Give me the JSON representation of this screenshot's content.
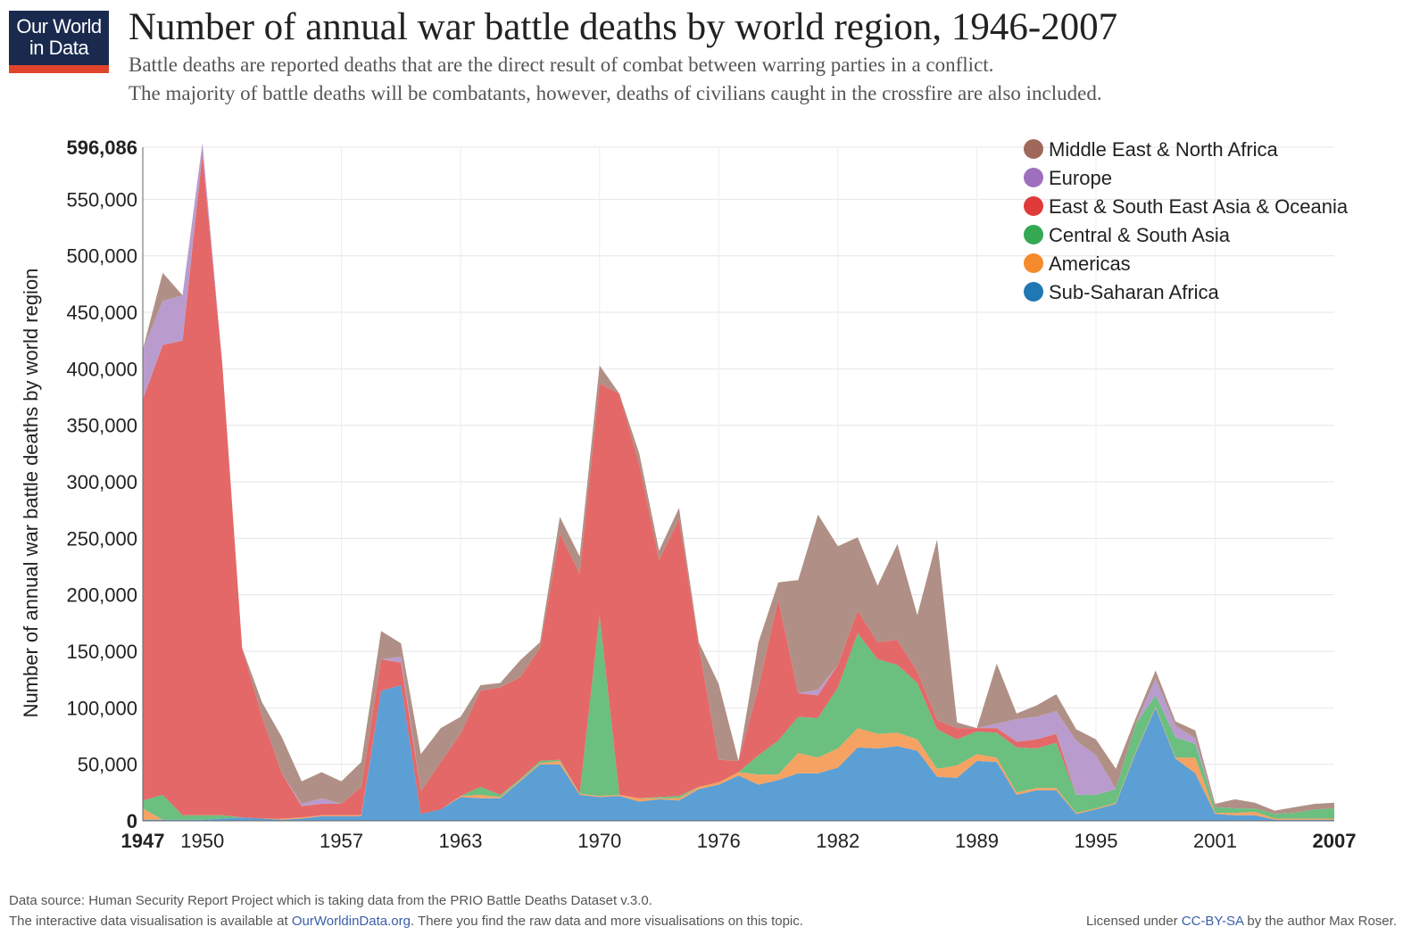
{
  "header": {
    "logo_line1": "Our World",
    "logo_line2": "in Data",
    "title": "Number of annual war battle deaths by world region, 1946-2007",
    "subtitle_line1": "Battle deaths are reported deaths that are the direct result of combat between warring parties in a conflict.",
    "subtitle_line2": "The majority of battle deaths will be combatants, however, deaths of civilians caught in the crossfire are also included."
  },
  "footer": {
    "source": "Data source:  Human Security Report Project which is taking data from the PRIO Battle Deaths Dataset v.3.0.",
    "interactive_prefix": "The interactive data visualisation is available at ",
    "interactive_link": "OurWorldinData.org",
    "interactive_suffix": ". There you find the raw data and more visualisations on this topic.",
    "license_prefix": "Licensed under ",
    "license_link": "CC-BY-SA",
    "license_suffix": " by the author Max Roser."
  },
  "chart_data": {
    "type": "area",
    "stacked": true,
    "title": "Number of annual war battle deaths by world region, 1946-2007",
    "ylabel": "Number of annual war battle deaths by world region",
    "xlabel": "",
    "xlim": [
      1947,
      2007
    ],
    "ylim": [
      0,
      596086
    ],
    "y_ticks": [
      {
        "value": 0,
        "label": "0",
        "bold": true
      },
      {
        "value": 50000,
        "label": "50,000"
      },
      {
        "value": 100000,
        "label": "100,000"
      },
      {
        "value": 150000,
        "label": "150,000"
      },
      {
        "value": 200000,
        "label": "200,000"
      },
      {
        "value": 250000,
        "label": "250,000"
      },
      {
        "value": 300000,
        "label": "300,000"
      },
      {
        "value": 350000,
        "label": "350,000"
      },
      {
        "value": 400000,
        "label": "400,000"
      },
      {
        "value": 450000,
        "label": "450,000"
      },
      {
        "value": 500000,
        "label": "500,000"
      },
      {
        "value": 550000,
        "label": "550,000"
      },
      {
        "value": 596086,
        "label": "596,086",
        "bold": true
      }
    ],
    "x_ticks": [
      {
        "value": 1947,
        "label": "1947",
        "bold": true
      },
      {
        "value": 1950,
        "label": "1950"
      },
      {
        "value": 1957,
        "label": "1957"
      },
      {
        "value": 1963,
        "label": "1963"
      },
      {
        "value": 1970,
        "label": "1970"
      },
      {
        "value": 1976,
        "label": "1976"
      },
      {
        "value": 1982,
        "label": "1982"
      },
      {
        "value": 1989,
        "label": "1989"
      },
      {
        "value": 1995,
        "label": "1995"
      },
      {
        "value": 2001,
        "label": "2001"
      },
      {
        "value": 2007,
        "label": "2007",
        "bold": true
      }
    ],
    "legend_position": "top-right",
    "legend": [
      {
        "name": "Middle East & North Africa",
        "color": "#a0685a"
      },
      {
        "name": "Europe",
        "color": "#9e6fbe"
      },
      {
        "name": "East & South East Asia & Oceania",
        "color": "#e03a3a"
      },
      {
        "name": "Central & South Asia",
        "color": "#34a853"
      },
      {
        "name": "Americas",
        "color": "#f58a2a"
      },
      {
        "name": "Sub-Saharan Africa",
        "color": "#1f78b4"
      }
    ],
    "x": [
      1947,
      1948,
      1949,
      1950,
      1951,
      1952,
      1953,
      1954,
      1955,
      1956,
      1957,
      1958,
      1959,
      1960,
      1961,
      1962,
      1963,
      1964,
      1965,
      1966,
      1967,
      1968,
      1969,
      1970,
      1971,
      1972,
      1973,
      1974,
      1975,
      1976,
      1977,
      1978,
      1979,
      1980,
      1981,
      1982,
      1983,
      1984,
      1985,
      1986,
      1987,
      1988,
      1989,
      1990,
      1991,
      1992,
      1993,
      1994,
      1995,
      1996,
      1997,
      1998,
      1999,
      2000,
      2001,
      2002,
      2003,
      2004,
      2005,
      2006,
      2007
    ],
    "series": [
      {
        "name": "Sub-Saharan Africa",
        "color": "#5b9fd4",
        "values": [
          1000,
          1000,
          1000,
          1000,
          2000,
          3000,
          2000,
          1000,
          2000,
          4000,
          4000,
          4000,
          115000,
          120000,
          6000,
          10000,
          21000,
          20000,
          20000,
          35000,
          50000,
          50000,
          23000,
          21000,
          22000,
          17000,
          19000,
          18000,
          28000,
          32000,
          40000,
          32000,
          36000,
          42000,
          42000,
          47000,
          65000,
          64000,
          66000,
          62000,
          39000,
          38000,
          53000,
          52000,
          23000,
          27000,
          27000,
          6000,
          10000,
          15000,
          60000,
          100000,
          55000,
          42000,
          6000,
          5000,
          5000,
          1000,
          1000,
          1000,
          1000
        ]
      },
      {
        "name": "Americas",
        "color": "#f5a262",
        "values": [
          10000,
          0,
          0,
          0,
          0,
          0,
          0,
          1000,
          1000,
          1000,
          1000,
          1000,
          0,
          0,
          0,
          0,
          1000,
          3000,
          1000,
          1000,
          1000,
          3000,
          1000,
          1000,
          1000,
          3000,
          1000,
          2000,
          2000,
          2000,
          3000,
          9000,
          5000,
          18000,
          14000,
          17000,
          17000,
          13000,
          12000,
          10000,
          7000,
          11000,
          6000,
          4000,
          2000,
          2000,
          2000,
          1000,
          1000,
          1000,
          1000,
          1000,
          1000,
          14000,
          1000,
          2000,
          3000,
          1000,
          1000,
          1000,
          1000
        ]
      },
      {
        "name": "Central & South Asia",
        "color": "#6bbf7f",
        "values": [
          7000,
          22000,
          4000,
          4000,
          3000,
          0,
          0,
          0,
          0,
          0,
          0,
          0,
          0,
          0,
          0,
          0,
          0,
          7000,
          2000,
          1000,
          2000,
          1000,
          0,
          160000,
          0,
          0,
          1000,
          2000,
          0,
          0,
          0,
          17000,
          30000,
          32000,
          35000,
          54000,
          84000,
          66000,
          60000,
          50000,
          35000,
          23000,
          20000,
          22000,
          40000,
          35000,
          40000,
          16000,
          12000,
          12000,
          25000,
          10000,
          18000,
          12000,
          5000,
          4000,
          3000,
          4000,
          5000,
          8000,
          9000
        ]
      },
      {
        "name": "East & South East Asia & Oceania",
        "color": "#e46868",
        "values": [
          355000,
          398000,
          420000,
          585000,
          400000,
          150000,
          90000,
          40000,
          10000,
          10000,
          10000,
          25000,
          28000,
          20000,
          20000,
          42000,
          55000,
          85000,
          95000,
          90000,
          100000,
          200000,
          195000,
          205000,
          355000,
          295000,
          210000,
          245000,
          125000,
          20000,
          10000,
          60000,
          125000,
          21000,
          20000,
          20000,
          20000,
          15000,
          22000,
          10000,
          8000,
          10000,
          3000,
          4000,
          5000,
          8000,
          8000,
          0,
          0,
          0,
          0,
          0,
          0,
          0,
          0,
          0,
          0,
          0,
          0,
          0,
          0
        ]
      },
      {
        "name": "Europe",
        "color": "#b99ccd",
        "values": [
          44000,
          39000,
          40000,
          10000,
          0,
          0,
          0,
          0,
          2000,
          5000,
          0,
          0,
          0,
          5000,
          0,
          0,
          0,
          0,
          0,
          0,
          0,
          0,
          0,
          0,
          0,
          0,
          0,
          0,
          0,
          0,
          0,
          0,
          0,
          0,
          5000,
          0,
          0,
          0,
          0,
          0,
          0,
          0,
          0,
          4000,
          20000,
          20000,
          20000,
          48000,
          35000,
          0,
          0,
          15000,
          10000,
          5000,
          0,
          0,
          0,
          0,
          0,
          0,
          0
        ]
      },
      {
        "name": "Middle East & North Africa",
        "color": "#b09086",
        "values": [
          0,
          25000,
          0,
          0,
          0,
          0,
          13000,
          32000,
          20000,
          23000,
          20000,
          22000,
          25000,
          12000,
          33000,
          30000,
          15000,
          5000,
          4000,
          15000,
          5000,
          15000,
          15000,
          16000,
          0,
          10000,
          8000,
          10000,
          3000,
          67000,
          0,
          40000,
          15000,
          100000,
          155000,
          105000,
          65000,
          50000,
          85000,
          50000,
          160000,
          5000,
          0,
          53000,
          5000,
          10000,
          15000,
          10000,
          14000,
          18000,
          5000,
          7000,
          4000,
          7000,
          3000,
          8000,
          5000,
          3000,
          5000,
          5000,
          5000
        ]
      }
    ]
  }
}
